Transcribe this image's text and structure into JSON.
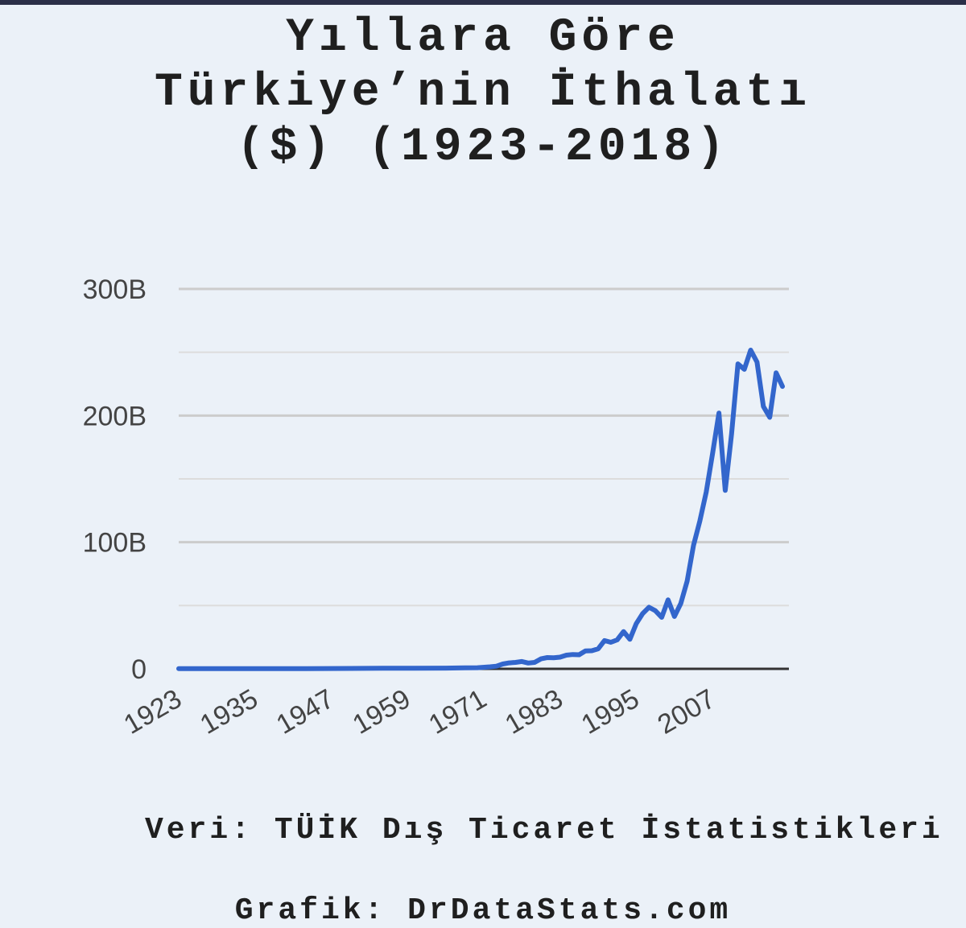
{
  "chart_data": {
    "type": "line",
    "title_lines": [
      "Yıllara Göre",
      "Türkiye’nin İthalatı",
      "($) (1923-2018)"
    ],
    "ylim": [
      0,
      300
    ],
    "y_ticks": [
      {
        "value": 0,
        "label": "0"
      },
      {
        "value": 100,
        "label": "100B"
      },
      {
        "value": 200,
        "label": "200B"
      },
      {
        "value": 300,
        "label": "300B"
      }
    ],
    "x_ticks": [
      "1923",
      "1935",
      "1947",
      "1959",
      "1971",
      "1983",
      "1995",
      "2007"
    ],
    "xlim": [
      1923,
      2018
    ],
    "grid": true,
    "colors": {
      "line": "#3366cc",
      "grid": "#cccccc",
      "baseline": "#333333"
    },
    "series": [
      {
        "x": [
          1923,
          1930,
          1940,
          1950,
          1955,
          1960,
          1965,
          1968,
          1970,
          1972,
          1973,
          1974,
          1975,
          1976,
          1977,
          1978,
          1979,
          1980,
          1981,
          1982,
          1983,
          1984,
          1985,
          1986,
          1987,
          1988,
          1989,
          1990,
          1991,
          1992,
          1993,
          1994,
          1995,
          1996,
          1997,
          1998,
          1999,
          2000,
          2001,
          2002,
          2003,
          2004,
          2005,
          2006,
          2007,
          2008,
          2009,
          2010,
          2011,
          2012,
          2013,
          2014,
          2015,
          2016,
          2017,
          2018
        ],
        "y": [
          0.1,
          0.1,
          0.1,
          0.3,
          0.5,
          0.5,
          0.6,
          0.8,
          0.9,
          1.6,
          2.1,
          3.8,
          4.7,
          5.1,
          5.8,
          4.6,
          5.1,
          7.9,
          8.9,
          8.8,
          9.2,
          10.8,
          11.3,
          11.1,
          14.2,
          14.3,
          15.8,
          22.3,
          21.0,
          22.9,
          29.4,
          23.3,
          35.7,
          43.6,
          48.6,
          45.9,
          40.7,
          54.5,
          41.4,
          51.6,
          69.3,
          97.5,
          116.8,
          139.6,
          170.1,
          202.0,
          140.9,
          185.5,
          240.8,
          236.5,
          251.7,
          242.2,
          207.2,
          198.6,
          233.8,
          223.0
        ]
      }
    ]
  },
  "footer": {
    "source": "Veri: TÜİK Dış Ticaret İstatistikleri",
    "credit": "Grafik: DrDataStats.com"
  }
}
